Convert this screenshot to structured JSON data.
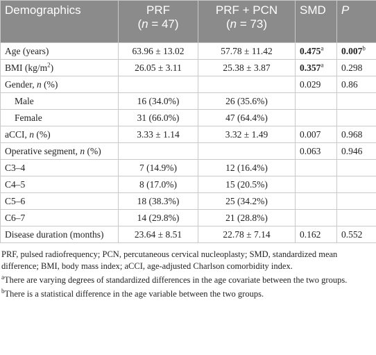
{
  "table": {
    "header": [
      [
        {
          "text": "Demographics"
        }
      ],
      [
        {
          "text": "PRF"
        },
        {
          "text": "(",
          "br": true
        },
        {
          "text": "n",
          "style": "italic"
        },
        {
          "text": " = 47)"
        }
      ],
      [
        {
          "text": "PRF + PCN"
        },
        {
          "text": "(",
          "br": true
        },
        {
          "text": "n",
          "style": "italic"
        },
        {
          "text": " = 73)"
        }
      ],
      [
        {
          "text": "SMD"
        }
      ],
      [
        {
          "text": "P",
          "style": "italic"
        }
      ]
    ],
    "rows": [
      {
        "cells": [
          [
            {
              "text": "Age (years)"
            }
          ],
          [
            {
              "text": "63.96 ± 13.02"
            }
          ],
          [
            {
              "text": "57.78 ± 11.42"
            }
          ],
          [
            {
              "text": "0.475",
              "style": "bold"
            },
            {
              "text": "a",
              "style": "sup"
            }
          ],
          [
            {
              "text": "0.007",
              "style": "bold"
            },
            {
              "text": "b",
              "style": "sup"
            }
          ]
        ]
      },
      {
        "cells": [
          [
            {
              "text": "BMI (kg/m"
            },
            {
              "text": "2",
              "style": "sup"
            },
            {
              "text": ")"
            }
          ],
          [
            {
              "text": "26.05 ± 3.11"
            }
          ],
          [
            {
              "text": "25.38 ± 3.87"
            }
          ],
          [
            {
              "text": "0.357",
              "style": "bold"
            },
            {
              "text": "a",
              "style": "sup"
            }
          ],
          [
            {
              "text": "0.298"
            }
          ]
        ]
      },
      {
        "cells": [
          [
            {
              "text": "Gender, "
            },
            {
              "text": "n",
              "style": "italic"
            },
            {
              "text": " (%)"
            }
          ],
          null,
          null,
          [
            {
              "text": "0.029"
            }
          ],
          [
            {
              "text": "0.86"
            }
          ]
        ]
      },
      {
        "indent": true,
        "cells": [
          [
            {
              "text": "Male"
            }
          ],
          [
            {
              "text": "16 (34.0%)"
            }
          ],
          [
            {
              "text": "26 (35.6%)"
            }
          ],
          null,
          null
        ]
      },
      {
        "indent": true,
        "cells": [
          [
            {
              "text": "Female"
            }
          ],
          [
            {
              "text": "31 (66.0%)"
            }
          ],
          [
            {
              "text": "47 (64.4%)"
            }
          ],
          null,
          null
        ]
      },
      {
        "cells": [
          [
            {
              "text": "aCCI, "
            },
            {
              "text": "n",
              "style": "italic"
            },
            {
              "text": " (%)"
            }
          ],
          [
            {
              "text": "3.33 ± 1.14"
            }
          ],
          [
            {
              "text": "3.32 ± 1.49"
            }
          ],
          [
            {
              "text": "0.007"
            }
          ],
          [
            {
              "text": "0.968"
            }
          ]
        ]
      },
      {
        "cells": [
          [
            {
              "text": "Operative segment, "
            },
            {
              "text": "n",
              "style": "italic"
            },
            {
              "text": " (%)"
            }
          ],
          null,
          null,
          [
            {
              "text": "0.063"
            }
          ],
          [
            {
              "text": "0.946"
            }
          ]
        ]
      },
      {
        "cells": [
          [
            {
              "text": "C3–4"
            }
          ],
          [
            {
              "text": "7 (14.9%)"
            }
          ],
          [
            {
              "text": "12 (16.4%)"
            }
          ],
          null,
          null
        ]
      },
      {
        "cells": [
          [
            {
              "text": "C4–5"
            }
          ],
          [
            {
              "text": "8 (17.0%)"
            }
          ],
          [
            {
              "text": "15 (20.5%)"
            }
          ],
          null,
          null
        ]
      },
      {
        "cells": [
          [
            {
              "text": "C5–6"
            }
          ],
          [
            {
              "text": "18 (38.3%)"
            }
          ],
          [
            {
              "text": "25 (34.2%)"
            }
          ],
          null,
          null
        ]
      },
      {
        "cells": [
          [
            {
              "text": "C6–7"
            }
          ],
          [
            {
              "text": "14 (29.8%)"
            }
          ],
          [
            {
              "text": "21 (28.8%)"
            }
          ],
          null,
          null
        ]
      },
      {
        "cells": [
          [
            {
              "text": "Disease duration (months)"
            }
          ],
          [
            {
              "text": "23.64 ± 8.51"
            }
          ],
          [
            {
              "text": "22.78 ± 7.14"
            }
          ],
          [
            {
              "text": "0.162"
            }
          ],
          [
            {
              "text": "0.552"
            }
          ]
        ]
      }
    ]
  },
  "footnotes": [
    [
      {
        "text": "PRF, pulsed radiofrequency; PCN, percutaneous cervical nucleoplasty; SMD, standardized mean difference; BMI, body mass index; aCCI, age-adjusted Charlson comorbidity index."
      }
    ],
    [
      {
        "text": "a",
        "style": "sup"
      },
      {
        "text": "There are varying degrees of standardized differences in the age covariate between the two groups."
      }
    ],
    [
      {
        "text": "b",
        "style": "sup"
      },
      {
        "text": "There is a statistical difference in the age variable between the two groups."
      }
    ]
  ]
}
